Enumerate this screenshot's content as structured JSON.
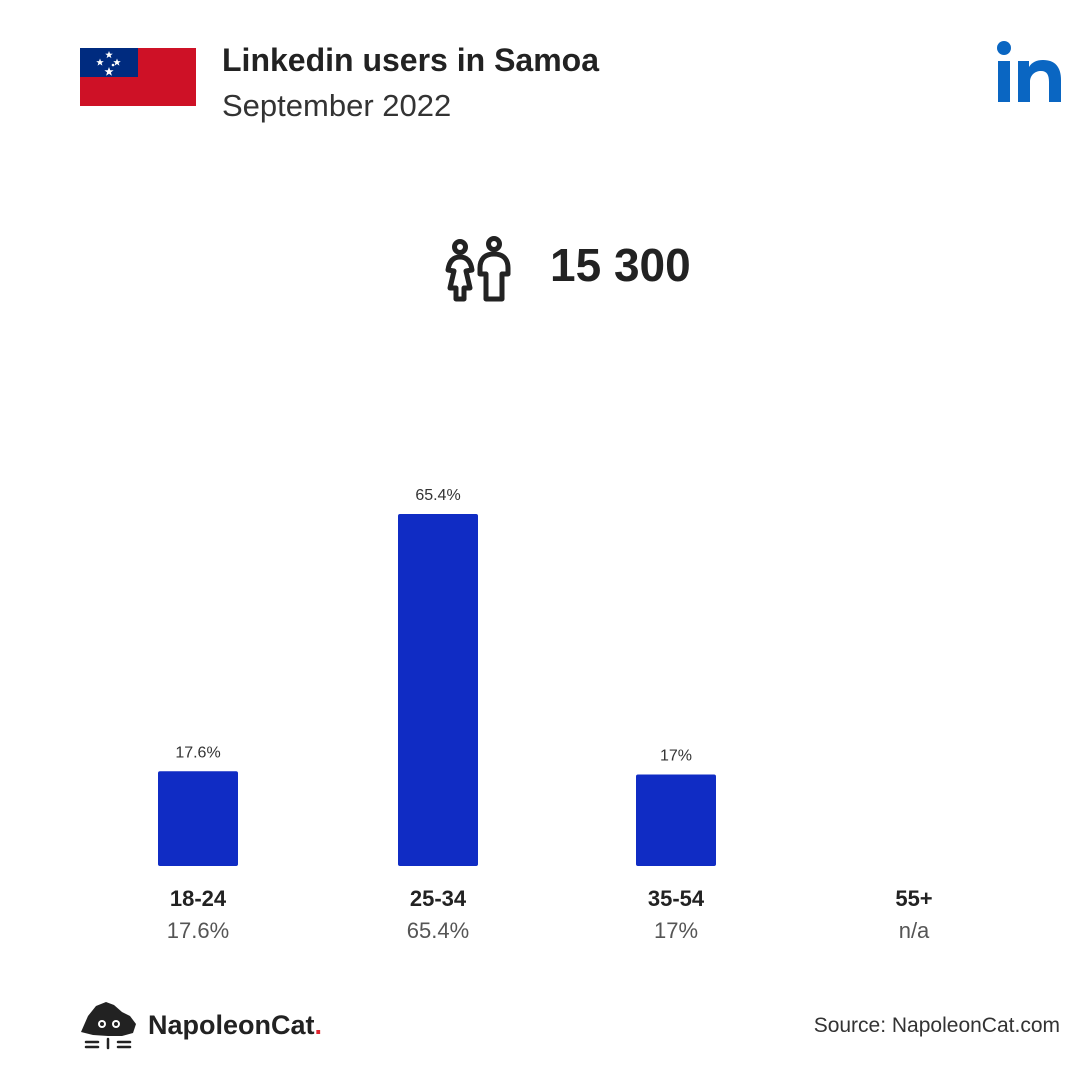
{
  "header": {
    "title": "Linkedin users in Samoa",
    "subtitle": "September 2022"
  },
  "summary": {
    "total_users": "15 300"
  },
  "colors": {
    "bar": "#102cc4",
    "flag_red": "#ce1126",
    "flag_blue": "#002b7f",
    "linkedin_blue": "#0a66c2",
    "brand_dot": "#e0262f"
  },
  "icons": {
    "flag": "samoa-flag-icon",
    "logo": "linkedin-logo-icon",
    "users": "users-icon",
    "brand": "napoleoncat-logo-icon"
  },
  "chart_data": {
    "type": "bar",
    "categories": [
      "18-24",
      "25-34",
      "35-54",
      "55+"
    ],
    "values": [
      17.6,
      65.4,
      17,
      null
    ],
    "bar_labels": [
      "17.6%",
      "65.4%",
      "17%",
      ""
    ],
    "category_values": [
      "17.6%",
      "65.4%",
      "17%",
      "n/a"
    ],
    "ylim": [
      0,
      65.4
    ],
    "grid": false
  },
  "footer": {
    "brand_name": "NapoleonCat",
    "brand_dot": ".",
    "source": "Source: NapoleonCat.com"
  }
}
